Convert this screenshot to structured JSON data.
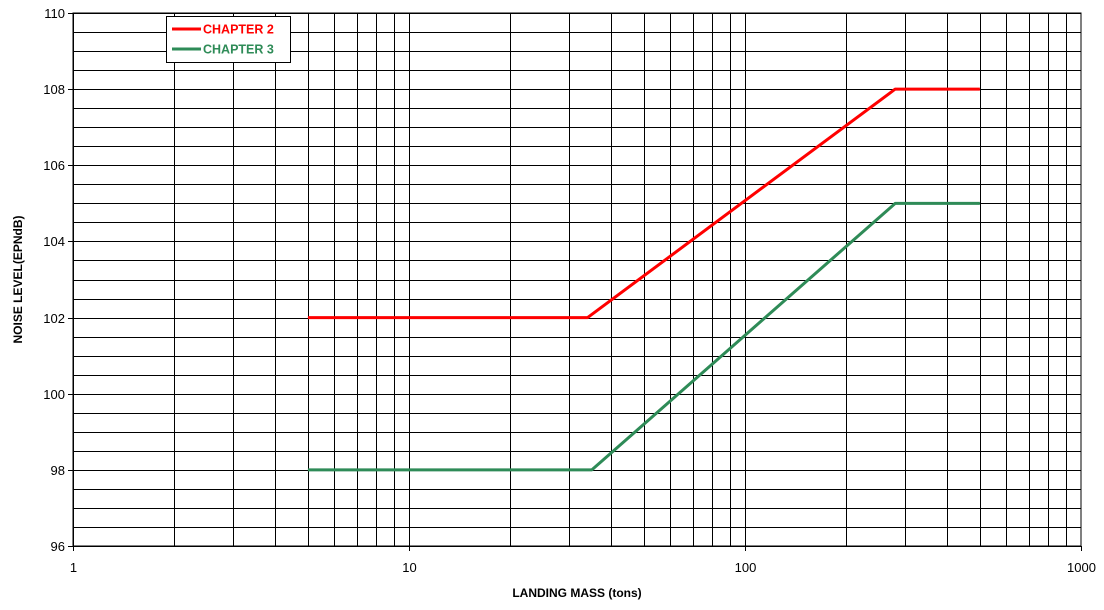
{
  "chart_data": {
    "type": "line",
    "title": "",
    "xlabel": "LANDING MASS (tons)",
    "ylabel": "NOISE LEVEL(EPNdB)",
    "xscale": "log",
    "xlim": [
      1,
      1000
    ],
    "ylim": [
      96,
      110
    ],
    "xticks": [
      "1",
      "10",
      "100",
      "1000"
    ],
    "yticks": [
      "96",
      "98",
      "100",
      "102",
      "104",
      "106",
      "108",
      "110"
    ],
    "grid": true,
    "legend_position": "top-left",
    "series": [
      {
        "name": "CHAPTER 2",
        "color": "#ff0000",
        "points": [
          [
            5,
            102
          ],
          [
            34,
            102
          ],
          [
            280,
            108
          ],
          [
            500,
            108
          ]
        ]
      },
      {
        "name": "CHAPTER 3",
        "color": "#2e8b57",
        "points": [
          [
            5,
            98
          ],
          [
            35,
            98
          ],
          [
            280,
            105
          ],
          [
            500,
            105
          ]
        ]
      }
    ]
  }
}
